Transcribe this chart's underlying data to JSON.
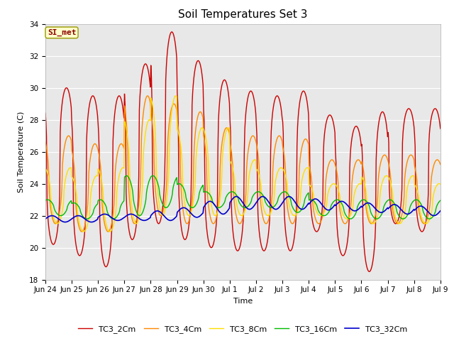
{
  "title": "Soil Temperatures Set 3",
  "ylabel": "Soil Temperature (C)",
  "xlabel": "Time",
  "annotation": "SI_met",
  "ylim": [
    18,
    34
  ],
  "yticks": [
    18,
    20,
    22,
    24,
    26,
    28,
    30,
    32,
    34
  ],
  "xtick_labels": [
    "Jun 24",
    "Jun 25",
    "Jun 26",
    "Jun 27",
    "Jun 28",
    "Jun 29",
    "Jun 30",
    "Jul 1",
    "Jul 2",
    "Jul 3",
    "Jul 4",
    "Jul 5",
    "Jul 6",
    "Jul 7",
    "Jul 8",
    "Jul 9"
  ],
  "series_names": [
    "TC3_2Cm",
    "TC3_4Cm",
    "TC3_8Cm",
    "TC3_16Cm",
    "TC3_32Cm"
  ],
  "series_colors": [
    "#cc0000",
    "#ff8800",
    "#ffdd00",
    "#00bb00",
    "#0000cc"
  ],
  "series_linewidths": [
    1.0,
    1.0,
    1.0,
    1.0,
    1.2
  ],
  "bg_color": "#e8e8e8",
  "fig_color": "#ffffff",
  "title_fontsize": 11,
  "axis_label_fontsize": 8,
  "tick_fontsize": 7.5,
  "legend_fontsize": 8,
  "n_days": 15
}
